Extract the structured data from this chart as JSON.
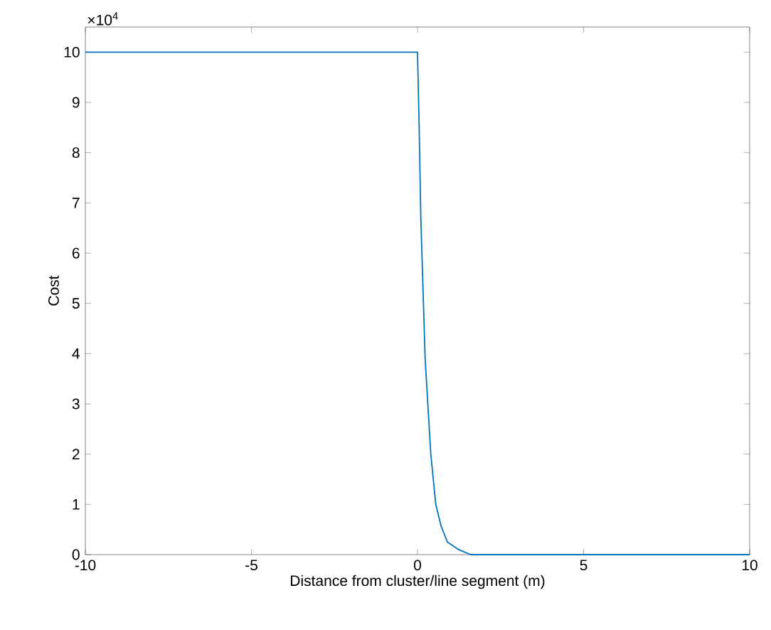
{
  "chart_data": {
    "type": "line",
    "xlabel": "Distance from cluster/line segment (m)",
    "ylabel": "Cost",
    "x": [
      -10,
      0,
      0.05,
      0.1,
      0.23,
      0.4,
      0.55,
      0.71,
      0.9,
      1.24,
      1.6,
      10
    ],
    "values": [
      10,
      10,
      8.5,
      6.7,
      3.9,
      2,
      1,
      0.57,
      0.25,
      0.1,
      0,
      0
    ],
    "color": "#0072bd",
    "xlim": [
      -10,
      10
    ],
    "xticks": [
      -10,
      -5,
      0,
      5,
      10
    ],
    "ylim": [
      0,
      10.5
    ],
    "yticks": [
      0,
      1,
      2,
      3,
      4,
      5,
      6,
      7,
      8,
      9,
      10
    ],
    "annotations": [
      "×10$^{4}$"
    ]
  }
}
